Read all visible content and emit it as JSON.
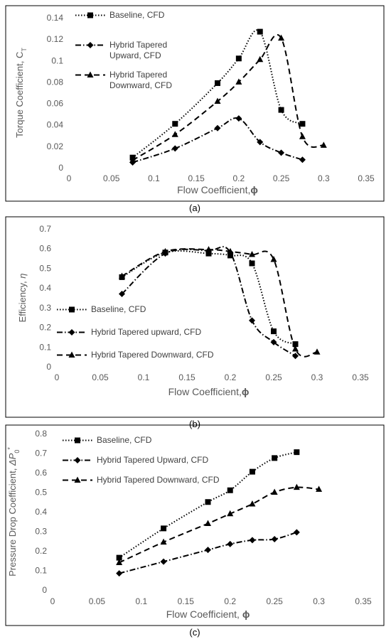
{
  "chart_data": [
    {
      "type": "line",
      "panel_label": "(a)",
      "ylabel": [
        {
          "text": "Torque Coefficient, C",
          "style": "normal"
        },
        {
          "text": "T",
          "style": "sub"
        }
      ],
      "xlabel": [
        {
          "text": "Flow Coefficient,",
          "style": "normal"
        },
        {
          "text": "ϕ",
          "style": "bold"
        }
      ],
      "xlim": [
        0,
        0.35
      ],
      "xticks": [
        0,
        0.05,
        0.1,
        0.15,
        0.2,
        0.25,
        0.3,
        0.35
      ],
      "ylim": [
        0,
        0.14
      ],
      "yticks": [
        0,
        0.02,
        0.04,
        0.06,
        0.08,
        0.1,
        0.12,
        0.14
      ],
      "grid": false,
      "legend": "top-left",
      "series": [
        {
          "name": "Baseline, CFD",
          "color": "#000000",
          "marker": "square",
          "line_style": "dotted",
          "x": [
            0.075,
            0.125,
            0.175,
            0.2,
            0.225,
            0.25,
            0.275
          ],
          "values": [
            0.0095,
            0.041,
            0.079,
            0.102,
            0.127,
            0.054,
            0.041
          ]
        },
        {
          "name": "Hybrid Tapered Upward, CFD",
          "color": "#000000",
          "marker": "diamond",
          "line_style": "dashdot",
          "x": [
            0.075,
            0.125,
            0.175,
            0.2,
            0.225,
            0.25,
            0.275
          ],
          "values": [
            0.005,
            0.018,
            0.037,
            0.046,
            0.024,
            0.014,
            0.0075
          ]
        },
        {
          "name": "Hybrid Tapered Downward, CFD",
          "color": "#000000",
          "marker": "triangle",
          "line_style": "dashed",
          "x": [
            0.075,
            0.125,
            0.175,
            0.2,
            0.225,
            0.25,
            0.275,
            0.3
          ],
          "values": [
            0.007,
            0.031,
            0.062,
            0.08,
            0.101,
            0.121,
            0.029,
            0.021
          ]
        }
      ]
    },
    {
      "type": "line",
      "panel_label": "(b)",
      "ylabel": [
        {
          "text": "Efficiency, ",
          "style": "normal"
        },
        {
          "text": "η",
          "style": "italic"
        }
      ],
      "xlabel": [
        {
          "text": "Flow Coefficient,",
          "style": "normal"
        },
        {
          "text": "ϕ",
          "style": "bold"
        }
      ],
      "xlim": [
        0,
        0.35
      ],
      "xticks": [
        0,
        0.05,
        0.1,
        0.15,
        0.2,
        0.25,
        0.3,
        0.35
      ],
      "ylim": [
        0,
        0.7
      ],
      "yticks": [
        0,
        0.1,
        0.2,
        0.3,
        0.4,
        0.5,
        0.6,
        0.7
      ],
      "grid": false,
      "legend": "bottom-left",
      "series": [
        {
          "name": "Baseline, CFD",
          "color": "#000000",
          "marker": "square",
          "line_style": "dotted",
          "x": [
            0.075,
            0.125,
            0.175,
            0.2,
            0.225,
            0.25,
            0.275
          ],
          "values": [
            0.455,
            0.58,
            0.575,
            0.565,
            0.525,
            0.18,
            0.115
          ]
        },
        {
          "name": "Hybrid Tapered upward, CFD",
          "color": "#000000",
          "marker": "diamond",
          "line_style": "dashdot",
          "x": [
            0.075,
            0.125,
            0.175,
            0.2,
            0.225,
            0.25,
            0.275
          ],
          "values": [
            0.37,
            0.575,
            0.59,
            0.58,
            0.235,
            0.125,
            0.055
          ]
        },
        {
          "name": "Hybrid Tapered Downward, CFD",
          "color": "#000000",
          "marker": "triangle",
          "line_style": "dashed",
          "x": [
            0.075,
            0.125,
            0.175,
            0.2,
            0.225,
            0.25,
            0.275,
            0.3
          ],
          "values": [
            0.46,
            0.585,
            0.595,
            0.585,
            0.57,
            0.545,
            0.09,
            0.075
          ]
        }
      ]
    },
    {
      "type": "line",
      "panel_label": "(c)",
      "ylabel": [
        {
          "text": "Pressure Drop Coefficient, ",
          "style": "normal"
        },
        {
          "text": "ΔP",
          "style": "italic"
        },
        {
          "text": "0",
          "style": "sub"
        },
        {
          "text": "*",
          "style": "sup"
        }
      ],
      "xlabel": [
        {
          "text": "Flow Coefficient, ",
          "style": "normal"
        },
        {
          "text": "ϕ",
          "style": "bold"
        }
      ],
      "xlim": [
        0,
        0.35
      ],
      "xticks": [
        0,
        0.05,
        0.1,
        0.15,
        0.2,
        0.25,
        0.3,
        0.35
      ],
      "ylim": [
        0,
        0.8
      ],
      "yticks": [
        0,
        0.1,
        0.2,
        0.3,
        0.4,
        0.5,
        0.6,
        0.7,
        0.8
      ],
      "grid": false,
      "legend": "top-left",
      "series": [
        {
          "name": "Baseline, CFD",
          "color": "#000000",
          "marker": "square",
          "line_style": "dotted",
          "x": [
            0.075,
            0.125,
            0.175,
            0.2,
            0.225,
            0.25,
            0.275
          ],
          "values": [
            0.165,
            0.315,
            0.45,
            0.51,
            0.605,
            0.675,
            0.705
          ]
        },
        {
          "name": "Hybrid Tapered Upward, CFD",
          "color": "#000000",
          "marker": "diamond",
          "line_style": "dashdot",
          "x": [
            0.075,
            0.125,
            0.175,
            0.2,
            0.225,
            0.25,
            0.275
          ],
          "values": [
            0.085,
            0.145,
            0.205,
            0.235,
            0.255,
            0.26,
            0.295
          ]
        },
        {
          "name": "Hybrid Tapered Downward, CFD",
          "color": "#000000",
          "marker": "triangle",
          "line_style": "dashed",
          "x": [
            0.075,
            0.125,
            0.175,
            0.2,
            0.225,
            0.25,
            0.275,
            0.3
          ],
          "values": [
            0.14,
            0.245,
            0.34,
            0.39,
            0.44,
            0.5,
            0.525,
            0.515
          ]
        }
      ]
    }
  ]
}
